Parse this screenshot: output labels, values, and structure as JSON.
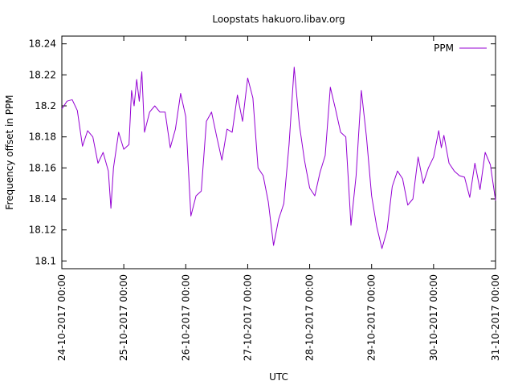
{
  "chart_data": {
    "type": "line",
    "title": "Loopstats hakuoro.libav.org",
    "xlabel": "UTC",
    "ylabel": "Frequency offset in PPM",
    "xlim": [
      "24-10-2017 00:00",
      "31-10-2017 00:00"
    ],
    "ylim": [
      18.095,
      18.245
    ],
    "x_tick_labels": [
      "24-10-2017 00:00",
      "25-10-2017 00:00",
      "26-10-2017 00:00",
      "27-10-2017 00:00",
      "28-10-2017 00:00",
      "29-10-2017 00:00",
      "30-10-2017 00:00",
      "31-10-2017 00:00"
    ],
    "y_ticks": [
      18.1,
      18.12,
      18.14,
      18.16,
      18.18,
      18.2,
      18.22,
      18.24
    ],
    "y_tick_labels": [
      "18.1",
      "18.12",
      "18.14",
      "18.16",
      "18.18",
      "18.2",
      "18.22",
      "18.24"
    ],
    "grid": false,
    "legend": {
      "position": "top-right"
    },
    "series": [
      {
        "name": "PPM",
        "color": "#9400d3",
        "points": [
          [
            "24-10-2017 00:00",
            18.198
          ],
          [
            "24-10-2017 02:00",
            18.203
          ],
          [
            "24-10-2017 04:00",
            18.204
          ],
          [
            "24-10-2017 06:00",
            18.197
          ],
          [
            "24-10-2017 08:00",
            18.174
          ],
          [
            "24-10-2017 10:00",
            18.184
          ],
          [
            "24-10-2017 12:00",
            18.18
          ],
          [
            "24-10-2017 14:00",
            18.163
          ],
          [
            "24-10-2017 16:00",
            18.17
          ],
          [
            "24-10-2017 18:00",
            18.158
          ],
          [
            "24-10-2017 19:00",
            18.134
          ],
          [
            "24-10-2017 20:00",
            18.16
          ],
          [
            "24-10-2017 22:00",
            18.183
          ],
          [
            "25-10-2017 00:00",
            18.172
          ],
          [
            "25-10-2017 02:00",
            18.175
          ],
          [
            "25-10-2017 03:00",
            18.21
          ],
          [
            "25-10-2017 04:00",
            18.2
          ],
          [
            "25-10-2017 05:00",
            18.217
          ],
          [
            "25-10-2017 06:00",
            18.203
          ],
          [
            "25-10-2017 07:00",
            18.222
          ],
          [
            "25-10-2017 08:00",
            18.183
          ],
          [
            "25-10-2017 10:00",
            18.196
          ],
          [
            "25-10-2017 12:00",
            18.2
          ],
          [
            "25-10-2017 14:00",
            18.196
          ],
          [
            "25-10-2017 16:00",
            18.196
          ],
          [
            "25-10-2017 18:00",
            18.173
          ],
          [
            "25-10-2017 20:00",
            18.185
          ],
          [
            "25-10-2017 22:00",
            18.208
          ],
          [
            "26-10-2017 00:00",
            18.193
          ],
          [
            "26-10-2017 01:00",
            18.16
          ],
          [
            "26-10-2017 02:00",
            18.129
          ],
          [
            "26-10-2017 04:00",
            18.142
          ],
          [
            "26-10-2017 06:00",
            18.145
          ],
          [
            "26-10-2017 08:00",
            18.19
          ],
          [
            "26-10-2017 10:00",
            18.196
          ],
          [
            "26-10-2017 12:00",
            18.18
          ],
          [
            "26-10-2017 14:00",
            18.165
          ],
          [
            "26-10-2017 16:00",
            18.185
          ],
          [
            "26-10-2017 18:00",
            18.183
          ],
          [
            "26-10-2017 20:00",
            18.207
          ],
          [
            "26-10-2017 22:00",
            18.19
          ],
          [
            "27-10-2017 00:00",
            18.218
          ],
          [
            "27-10-2017 02:00",
            18.205
          ],
          [
            "27-10-2017 04:00",
            18.16
          ],
          [
            "27-10-2017 06:00",
            18.155
          ],
          [
            "27-10-2017 08:00",
            18.138
          ],
          [
            "27-10-2017 10:00",
            18.11
          ],
          [
            "27-10-2017 12:00",
            18.127
          ],
          [
            "27-10-2017 14:00",
            18.137
          ],
          [
            "27-10-2017 16:00",
            18.175
          ],
          [
            "27-10-2017 18:00",
            18.225
          ],
          [
            "27-10-2017 20:00",
            18.188
          ],
          [
            "27-10-2017 22:00",
            18.165
          ],
          [
            "28-10-2017 00:00",
            18.147
          ],
          [
            "28-10-2017 02:00",
            18.142
          ],
          [
            "28-10-2017 04:00",
            18.157
          ],
          [
            "28-10-2017 06:00",
            18.168
          ],
          [
            "28-10-2017 08:00",
            18.212
          ],
          [
            "28-10-2017 10:00",
            18.198
          ],
          [
            "28-10-2017 12:00",
            18.183
          ],
          [
            "28-10-2017 14:00",
            18.18
          ],
          [
            "28-10-2017 16:00",
            18.123
          ],
          [
            "28-10-2017 18:00",
            18.155
          ],
          [
            "28-10-2017 20:00",
            18.21
          ],
          [
            "28-10-2017 22:00",
            18.18
          ],
          [
            "29-10-2017 00:00",
            18.142
          ],
          [
            "29-10-2017 02:00",
            18.122
          ],
          [
            "29-10-2017 04:00",
            18.108
          ],
          [
            "29-10-2017 06:00",
            18.12
          ],
          [
            "29-10-2017 08:00",
            18.148
          ],
          [
            "29-10-2017 10:00",
            18.158
          ],
          [
            "29-10-2017 12:00",
            18.153
          ],
          [
            "29-10-2017 14:00",
            18.136
          ],
          [
            "29-10-2017 16:00",
            18.14
          ],
          [
            "29-10-2017 18:00",
            18.167
          ],
          [
            "29-10-2017 20:00",
            18.15
          ],
          [
            "29-10-2017 22:00",
            18.16
          ],
          [
            "30-10-2017 00:00",
            18.167
          ],
          [
            "30-10-2017 02:00",
            18.184
          ],
          [
            "30-10-2017 03:00",
            18.173
          ],
          [
            "30-10-2017 04:00",
            18.181
          ],
          [
            "30-10-2017 06:00",
            18.163
          ],
          [
            "30-10-2017 08:00",
            18.158
          ],
          [
            "30-10-2017 10:00",
            18.155
          ],
          [
            "30-10-2017 12:00",
            18.154
          ],
          [
            "30-10-2017 14:00",
            18.141
          ],
          [
            "30-10-2017 16:00",
            18.163
          ],
          [
            "30-10-2017 18:00",
            18.146
          ],
          [
            "30-10-2017 20:00",
            18.17
          ],
          [
            "30-10-2017 22:00",
            18.162
          ],
          [
            "31-10-2017 00:00",
            18.139
          ]
        ]
      }
    ]
  }
}
